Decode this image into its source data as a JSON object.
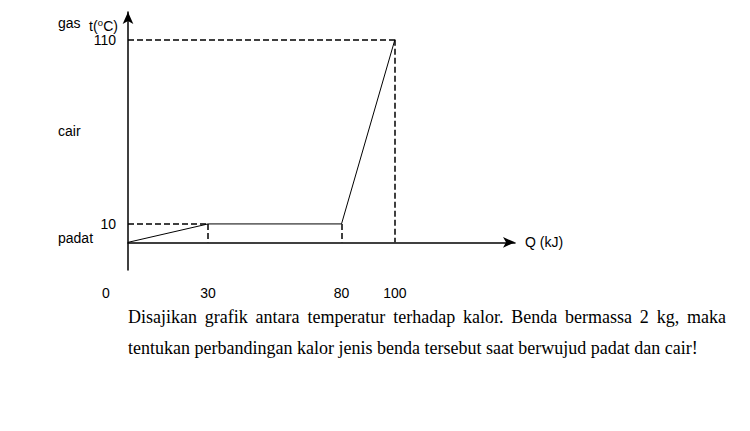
{
  "chart_data": {
    "type": "line",
    "x_label": "Q (kJ)",
    "y_label": "t(⁰C)",
    "x": [
      0,
      30,
      80,
      100
    ],
    "values": [
      0,
      10,
      10,
      110
    ],
    "color": "#000000",
    "xlim": [
      0,
      145
    ],
    "ylim": [
      -15,
      125
    ],
    "xticks": [
      0,
      30,
      80,
      100
    ],
    "yticks": [
      10,
      110
    ],
    "grid": false,
    "annotations": [
      "padat",
      "cair",
      "gas"
    ]
  },
  "text": "Disajikan grafik antara temperatur terhadap kalor. Benda bermassa 2 kg, maka tentukan perbandingan kalor jenis benda tersebut saat berwujud padat dan cair!"
}
